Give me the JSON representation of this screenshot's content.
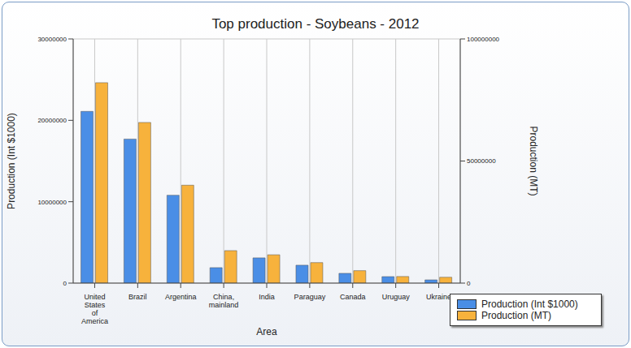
{
  "chart_data": {
    "type": "bar",
    "title": "Top production - Soybeans - 2012",
    "x_label": "Area",
    "y_label": "Production (Int $1000)",
    "y2_label": "Production (MT)",
    "categories": [
      "United States of America",
      "Brazil",
      "Argentina",
      "China, mainland",
      "India",
      "Paraguay",
      "Canada",
      "Uruguay",
      "Ukraine"
    ],
    "series": [
      {
        "name": "Production (Int $1000)",
        "color": "#4a8ee6",
        "values": [
          21100000,
          17700000,
          10800000,
          1900000,
          3100000,
          2200000,
          1200000,
          800000,
          400000
        ]
      },
      {
        "name": "Production (MT)",
        "color": "#f7b23c",
        "axis": "y2",
        "values": [
          82100000,
          65800000,
          40100000,
          13300000,
          11600000,
          8400000,
          5100000,
          2700000,
          2400000
        ]
      }
    ],
    "ylim": [
      0,
      30000000
    ],
    "yticks": [
      0,
      10000000,
      20000000,
      30000000
    ],
    "y2lim": [
      0,
      100000000
    ],
    "y2ticks": [
      0,
      50000000,
      100000000
    ],
    "grid": true,
    "legend": "bottom-right"
  }
}
